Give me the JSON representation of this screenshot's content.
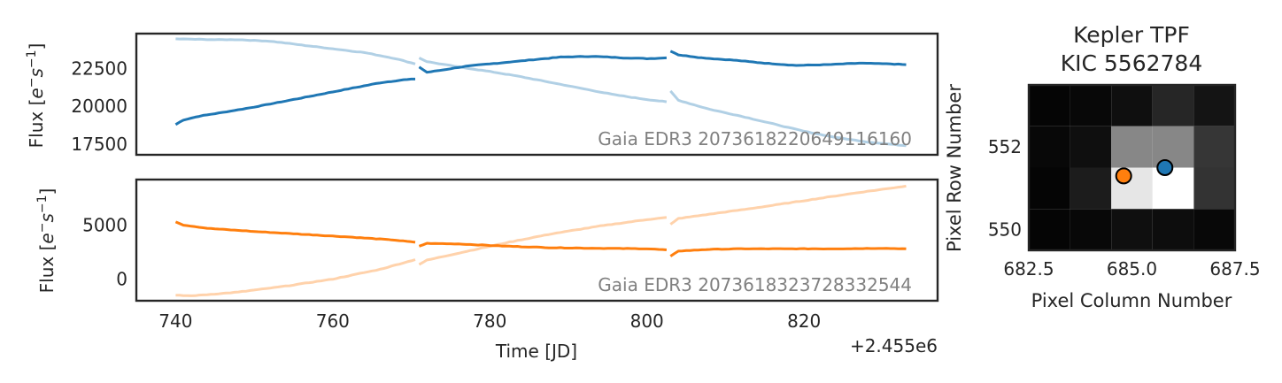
{
  "chart_data": [
    {
      "type": "line",
      "panel": "top",
      "ylabel": "Flux [e⁻ s⁻¹]",
      "ylabel_tex": "Flux [e^-s^-1]",
      "xlim": [
        735,
        837
      ],
      "ylim": [
        16800,
        24800
      ],
      "yticks": [
        17500,
        20000,
        22500
      ],
      "yticklabels": [
        "17500",
        "20000",
        "22500"
      ],
      "annotation": "Gaia EDR3 2073618220649116160",
      "series": [
        {
          "color": "#1f77b4",
          "alpha": 1.0,
          "segments": [
            [
              [
                740,
                18800
              ],
              [
                741,
                19100
              ],
              [
                743,
                19350
              ],
              [
                746,
                19600
              ],
              [
                750,
                19950
              ],
              [
                754,
                20350
              ],
              [
                758,
                20750
              ],
              [
                762,
                21150
              ],
              [
                766,
                21550
              ],
              [
                769,
                21750
              ],
              [
                770.5,
                21800
              ]
            ],
            [
              [
                771,
                22600
              ],
              [
                772,
                22250
              ],
              [
                774,
                22400
              ],
              [
                777,
                22650
              ],
              [
                781,
                22850
              ],
              [
                785,
                23050
              ],
              [
                789,
                23250
              ],
              [
                793,
                23300
              ],
              [
                797,
                23200
              ],
              [
                800,
                23150
              ],
              [
                802.5,
                23200
              ]
            ],
            [
              [
                803,
                23650
              ],
              [
                804,
                23400
              ],
              [
                807,
                23200
              ],
              [
                811,
                23050
              ],
              [
                815,
                22850
              ],
              [
                819,
                22700
              ],
              [
                823,
                22750
              ],
              [
                827,
                22850
              ],
              [
                831,
                22800
              ],
              [
                833,
                22750
              ]
            ]
          ]
        },
        {
          "color": "#1f77b4",
          "alpha": 0.35,
          "segments": [
            [
              [
                740,
                24450
              ],
              [
                745,
                24400
              ],
              [
                748,
                24400
              ],
              [
                752,
                24300
              ],
              [
                756,
                24050
              ],
              [
                760,
                23800
              ],
              [
                764,
                23550
              ],
              [
                768,
                23150
              ],
              [
                770.5,
                22800
              ]
            ],
            [
              [
                771,
                23200
              ],
              [
                772,
                22950
              ],
              [
                776,
                22600
              ],
              [
                780,
                22300
              ],
              [
                784,
                21950
              ],
              [
                788,
                21550
              ],
              [
                792,
                21150
              ],
              [
                796,
                20750
              ],
              [
                800,
                20450
              ],
              [
                802.5,
                20300
              ]
            ],
            [
              [
                803,
                21000
              ],
              [
                804,
                20400
              ],
              [
                808,
                19800
              ],
              [
                812,
                19350
              ],
              [
                816,
                18850
              ],
              [
                820,
                18350
              ],
              [
                824,
                17950
              ],
              [
                828,
                17650
              ],
              [
                833,
                17400
              ]
            ]
          ]
        }
      ]
    },
    {
      "type": "line",
      "panel": "bottom",
      "xlabel": "Time [JD]",
      "ylabel": "Flux [e⁻ s⁻¹]",
      "ylabel_tex": "Flux [e^-s^-1]",
      "xlim": [
        735,
        837
      ],
      "ylim": [
        -2000,
        9200
      ],
      "xticks": [
        740,
        760,
        780,
        800,
        820
      ],
      "xticklabels": [
        "740",
        "760",
        "780",
        "800",
        "820"
      ],
      "yticks": [
        0,
        5000
      ],
      "yticklabels": [
        "0",
        "5000"
      ],
      "offset_text": "+2.455e6",
      "annotation": "Gaia EDR3 2073618323728332544",
      "series": [
        {
          "color": "#ff7f0e",
          "alpha": 1.0,
          "segments": [
            [
              [
                740,
                5300
              ],
              [
                741,
                5000
              ],
              [
                744,
                4700
              ],
              [
                750,
                4400
              ],
              [
                756,
                4150
              ],
              [
                762,
                3900
              ],
              [
                768,
                3600
              ],
              [
                770.5,
                3400
              ]
            ],
            [
              [
                771,
                3050
              ],
              [
                772,
                3300
              ],
              [
                776,
                3250
              ],
              [
                782,
                3050
              ],
              [
                788,
                2900
              ],
              [
                794,
                2850
              ],
              [
                800,
                2800
              ],
              [
                802.5,
                2700
              ]
            ],
            [
              [
                803,
                2100
              ],
              [
                804,
                2600
              ],
              [
                808,
                2750
              ],
              [
                812,
                2800
              ],
              [
                818,
                2800
              ],
              [
                824,
                2800
              ],
              [
                830,
                2850
              ],
              [
                833,
                2800
              ]
            ]
          ]
        },
        {
          "color": "#ff7f0e",
          "alpha": 0.35,
          "segments": [
            [
              [
                740,
                -1500
              ],
              [
                742,
                -1550
              ],
              [
                748,
                -1200
              ],
              [
                754,
                -650
              ],
              [
                760,
                0
              ],
              [
                766,
                900
              ],
              [
                770.5,
                1800
              ]
            ],
            [
              [
                771,
                1350
              ],
              [
                772,
                1750
              ],
              [
                776,
                2400
              ],
              [
                782,
                3350
              ],
              [
                788,
                4200
              ],
              [
                794,
                4900
              ],
              [
                800,
                5500
              ],
              [
                802.5,
                5700
              ]
            ],
            [
              [
                803,
                5050
              ],
              [
                804,
                5600
              ],
              [
                808,
                6000
              ],
              [
                814,
                6600
              ],
              [
                820,
                7250
              ],
              [
                826,
                7900
              ],
              [
                833,
                8600
              ]
            ]
          ]
        }
      ]
    },
    {
      "type": "heatmap",
      "panel": "tpf",
      "title": "Kepler TPF\nKIC 5562784",
      "title_lines": [
        "Kepler TPF",
        "KIC 5562784"
      ],
      "xlabel": "Pixel Column Number",
      "ylabel": "Pixel Row Number",
      "xlim": [
        682.5,
        687.5
      ],
      "ylim": [
        549.5,
        553.5
      ],
      "xticks": [
        682.5,
        685.0,
        687.5
      ],
      "xticklabels": [
        "682.5",
        "685.0",
        "687.5"
      ],
      "yticks": [
        550,
        552
      ],
      "yticklabels": [
        "550",
        "552"
      ],
      "cmap": "gray",
      "columns": [
        683,
        684,
        685,
        686,
        687
      ],
      "rows": [
        553,
        552,
        551,
        550
      ],
      "values": [
        [
          0.02,
          0.03,
          0.06,
          0.15,
          0.08
        ],
        [
          0.03,
          0.06,
          0.53,
          0.53,
          0.21
        ],
        [
          0.02,
          0.11,
          0.9,
          1.0,
          0.2
        ],
        [
          0.02,
          0.03,
          0.06,
          0.05,
          0.03
        ]
      ],
      "markers": [
        {
          "col": 684.8,
          "row": 551.3,
          "color": "#ff7f0e"
        },
        {
          "col": 685.8,
          "row": 551.5,
          "color": "#1f77b4"
        }
      ]
    }
  ]
}
